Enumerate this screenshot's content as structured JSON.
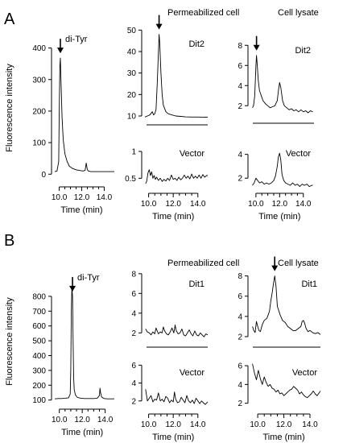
{
  "colors": {
    "trace": "#000000",
    "axis": "#000000",
    "background": "#ffffff"
  },
  "sections": [
    {
      "letter": "A",
      "col_headers": [
        "Permeabilized cell",
        "Cell lysate"
      ]
    },
    {
      "letter": "B",
      "col_headers": [
        "Permeabilized cell",
        "Cell lysate"
      ]
    }
  ],
  "chart_data": [
    {
      "id": "A-standard",
      "section": "A",
      "type": "line",
      "title": "",
      "xlabel": "Time (min)",
      "ylabel": "Fluorescence intensity",
      "panel_label": "",
      "peak_label": "di-Tyr",
      "peak_arrow_x": 10.1,
      "xlim": [
        9.6,
        14.9
      ],
      "ylim": [
        -30,
        450
      ],
      "xticks": [
        10.0,
        12.0,
        14.0
      ],
      "xtick_labels": [
        "10.0",
        "12.0",
        "14.0"
      ],
      "yticks": [
        0,
        100,
        200,
        300,
        400
      ],
      "ytick_labels": [
        "0",
        "100",
        "200",
        "300",
        "400"
      ],
      "show_x_axis": true,
      "show_xtick_labels": true,
      "show_y_axis": true,
      "series": [
        {
          "x": [
            9.6,
            9.8,
            9.95,
            10.0,
            10.05,
            10.1,
            10.15,
            10.25,
            10.35,
            10.5,
            10.7,
            10.9,
            11.2,
            11.5,
            11.8,
            12.1,
            12.3,
            12.4,
            12.5,
            12.6,
            12.8,
            13.2,
            13.6,
            14.0,
            14.4,
            14.9
          ],
          "y": [
            8,
            10,
            40,
            200,
            340,
            368,
            300,
            180,
            110,
            65,
            40,
            25,
            18,
            14,
            12,
            10,
            12,
            35,
            14,
            10,
            8,
            8,
            8,
            8,
            8,
            8
          ]
        }
      ]
    },
    {
      "id": "A-perm-dit2",
      "section": "A",
      "type": "line",
      "title": "",
      "xlabel": "",
      "ylabel": "",
      "panel_label": "Dit2",
      "peak_label": "",
      "peak_arrow_x": 10.85,
      "xlim": [
        9.7,
        14.8
      ],
      "ylim": [
        7,
        52
      ],
      "xticks": [],
      "xtick_labels": [],
      "yticks": [
        10,
        20,
        30,
        40,
        50
      ],
      "ytick_labels": [
        "10",
        "20",
        "30",
        "40",
        "50"
      ],
      "show_x_axis": true,
      "show_xtick_labels": false,
      "show_y_axis": true,
      "series": [
        {
          "x": [
            9.7,
            9.9,
            10.1,
            10.3,
            10.4,
            10.5,
            10.6,
            10.7,
            10.8,
            10.85,
            10.9,
            11.0,
            11.1,
            11.2,
            11.4,
            11.6,
            11.9,
            12.2,
            12.6,
            13.0,
            13.5,
            14.0,
            14.8
          ],
          "y": [
            9.5,
            10,
            10.5,
            12,
            10.5,
            11,
            13,
            25,
            40,
            48,
            44,
            30,
            20,
            15,
            12,
            11,
            10.5,
            10,
            9.8,
            9.6,
            9.5,
            9.5,
            9.4
          ]
        }
      ]
    },
    {
      "id": "A-perm-vector",
      "section": "A",
      "type": "line",
      "title": "",
      "xlabel": "Time (min)",
      "ylabel": "",
      "panel_label": "Vector",
      "peak_label": "",
      "peak_arrow_x": null,
      "xlim": [
        9.7,
        14.8
      ],
      "ylim": [
        0.28,
        1.3
      ],
      "xticks": [
        10.0,
        12.0,
        14.0
      ],
      "xtick_labels": [
        "10.0",
        "12.0",
        "14.0"
      ],
      "yticks": [
        0.5,
        1
      ],
      "ytick_labels": [
        "0.5",
        "1"
      ],
      "show_x_axis": false,
      "show_xtick_labels": true,
      "show_y_axis": true,
      "series": [
        {
          "x": [
            9.75,
            9.85,
            9.95,
            10.05,
            10.15,
            10.25,
            10.35,
            10.45,
            10.55,
            10.65,
            10.8,
            10.95,
            11.1,
            11.25,
            11.4,
            11.55,
            11.7,
            11.85,
            12.0,
            12.15,
            12.3,
            12.45,
            12.6,
            12.75,
            12.9,
            13.05,
            13.2,
            13.35,
            13.5,
            13.65,
            13.8,
            13.95,
            14.1,
            14.25,
            14.4,
            14.55,
            14.7,
            14.8
          ],
          "y": [
            0.4,
            0.45,
            0.6,
            0.66,
            0.55,
            0.62,
            0.5,
            0.55,
            0.48,
            0.52,
            0.46,
            0.5,
            0.44,
            0.48,
            0.45,
            0.5,
            0.46,
            0.56,
            0.48,
            0.5,
            0.46,
            0.52,
            0.47,
            0.5,
            0.56,
            0.5,
            0.54,
            0.49,
            0.58,
            0.5,
            0.54,
            0.5,
            0.56,
            0.5,
            0.57,
            0.52,
            0.55,
            0.55
          ]
        }
      ]
    },
    {
      "id": "A-lys-dit2",
      "section": "A",
      "type": "line",
      "title": "",
      "xlabel": "",
      "ylabel": "",
      "panel_label": "Dit2",
      "peak_label": "",
      "peak_arrow_x": 10.05,
      "xlim": [
        9.6,
        14.9
      ],
      "ylim": [
        0.5,
        9.3
      ],
      "xticks": [],
      "xtick_labels": [],
      "yticks": [
        2,
        4,
        6,
        8
      ],
      "ytick_labels": [
        "2",
        "4",
        "6",
        "8"
      ],
      "show_x_axis": true,
      "show_xtick_labels": false,
      "show_y_axis": true,
      "series": [
        {
          "x": [
            9.7,
            9.8,
            9.9,
            10.0,
            10.05,
            10.1,
            10.2,
            10.3,
            10.45,
            10.6,
            10.8,
            11.0,
            11.2,
            11.4,
            11.6,
            11.8,
            11.9,
            12.0,
            12.1,
            12.25,
            12.4,
            12.6,
            12.8,
            13.0,
            13.2,
            13.4,
            13.6,
            13.8,
            14.0,
            14.2,
            14.4,
            14.6,
            14.8
          ],
          "y": [
            1.8,
            2,
            3,
            6,
            7,
            6.2,
            4.5,
            3.5,
            3,
            2.5,
            2.2,
            2,
            1.8,
            1.9,
            2,
            2.5,
            3.5,
            4.3,
            3.8,
            2.5,
            2,
            1.8,
            1.6,
            1.7,
            1.5,
            1.6,
            1.4,
            1.6,
            1.4,
            1.5,
            1.3,
            1.5,
            1.4
          ]
        }
      ]
    },
    {
      "id": "A-lys-vector",
      "section": "A",
      "type": "line",
      "title": "",
      "xlabel": "Time (min)",
      "ylabel": "",
      "panel_label": "Vector",
      "peak_label": "",
      "peak_arrow_x": null,
      "xlim": [
        9.6,
        14.9
      ],
      "ylim": [
        1.0,
        5.6
      ],
      "xticks": [
        10.0,
        12.0,
        14.0
      ],
      "xtick_labels": [
        "10.0",
        "12.0",
        "14.0"
      ],
      "yticks": [
        2,
        4
      ],
      "ytick_labels": [
        "2",
        "4"
      ],
      "show_x_axis": false,
      "show_xtick_labels": true,
      "show_y_axis": true,
      "series": [
        {
          "x": [
            9.7,
            9.85,
            10.0,
            10.15,
            10.3,
            10.5,
            10.7,
            10.9,
            11.1,
            11.3,
            11.5,
            11.65,
            11.8,
            11.9,
            12.0,
            12.1,
            12.2,
            12.35,
            12.5,
            12.7,
            12.9,
            13.1,
            13.3,
            13.5,
            13.7,
            13.9,
            14.1,
            14.3,
            14.5,
            14.7,
            14.8
          ],
          "y": [
            1.4,
            1.6,
            2,
            1.8,
            1.6,
            1.7,
            1.5,
            1.6,
            1.5,
            1.6,
            1.8,
            2.2,
            3,
            3.8,
            4.1,
            3.5,
            2.3,
            1.8,
            1.6,
            1.5,
            1.4,
            1.6,
            1.4,
            1.5,
            1.3,
            1.5,
            1.4,
            1.5,
            1.3,
            1.4,
            1.4
          ]
        }
      ]
    },
    {
      "id": "B-standard",
      "section": "B",
      "type": "line",
      "title": "",
      "xlabel": "Time (min)",
      "ylabel": "Fluorescence intensity",
      "panel_label": "",
      "peak_label": "di-Tyr",
      "peak_arrow_x": 11.15,
      "xlim": [
        9.6,
        14.8
      ],
      "ylim": [
        60,
        930
      ],
      "xticks": [
        10.0,
        12.0,
        14.0
      ],
      "xtick_labels": [
        "10.0",
        "12.0",
        "14.0"
      ],
      "yticks": [
        100,
        200,
        300,
        400,
        500,
        600,
        700,
        800
      ],
      "ytick_labels": [
        "100",
        "200",
        "300",
        "400",
        "500",
        "600",
        "700",
        "800"
      ],
      "show_x_axis": true,
      "show_xtick_labels": true,
      "show_y_axis": true,
      "series": [
        {
          "x": [
            9.6,
            9.9,
            10.2,
            10.5,
            10.8,
            10.95,
            11.0,
            11.05,
            11.1,
            11.15,
            11.2,
            11.25,
            11.3,
            11.4,
            11.55,
            11.7,
            11.9,
            12.2,
            12.6,
            13.0,
            13.3,
            13.5,
            13.55,
            13.6,
            13.7,
            13.9,
            14.2,
            14.5,
            14.8
          ],
          "y": [
            108,
            110,
            110,
            112,
            115,
            140,
            300,
            700,
            860,
            800,
            500,
            250,
            170,
            135,
            120,
            115,
            112,
            110,
            110,
            110,
            112,
            130,
            180,
            150,
            120,
            110,
            108,
            108,
            108
          ]
        }
      ]
    },
    {
      "id": "B-perm-dit1",
      "section": "B",
      "type": "line",
      "title": "",
      "xlabel": "",
      "ylabel": "",
      "panel_label": "Dit1",
      "peak_label": "",
      "peak_arrow_x": null,
      "xlim": [
        9.7,
        14.8
      ],
      "ylim": [
        0.8,
        8.8
      ],
      "xticks": [],
      "xtick_labels": [],
      "yticks": [
        2,
        4,
        6,
        8
      ],
      "ytick_labels": [
        "2",
        "4",
        "6",
        "8"
      ],
      "show_x_axis": true,
      "show_xtick_labels": false,
      "show_y_axis": true,
      "series": [
        {
          "x": [
            9.75,
            9.9,
            10.05,
            10.2,
            10.35,
            10.5,
            10.6,
            10.7,
            10.8,
            10.95,
            11.1,
            11.2,
            11.3,
            11.45,
            11.6,
            11.75,
            11.9,
            12.05,
            12.15,
            12.25,
            12.4,
            12.55,
            12.7,
            12.85,
            13.0,
            13.15,
            13.3,
            13.45,
            13.6,
            13.75,
            13.9,
            14.05,
            14.2,
            14.35,
            14.5,
            14.65,
            14.8
          ],
          "y": [
            2.4,
            2.1,
            2,
            1.8,
            2.1,
            1.9,
            2.5,
            2.2,
            1.9,
            2.1,
            2,
            2.6,
            2.2,
            1.9,
            1.8,
            2.1,
            2.5,
            2.0,
            2.8,
            2.2,
            1.9,
            2.0,
            2.4,
            1.8,
            1.7,
            2.0,
            2.3,
            1.9,
            1.7,
            2.2,
            1.8,
            1.7,
            2.0,
            1.8,
            1.6,
            1.9,
            1.8
          ]
        }
      ]
    },
    {
      "id": "B-perm-vector",
      "section": "B",
      "type": "line",
      "title": "",
      "xlabel": "Time (min)",
      "ylabel": "",
      "panel_label": "Vector",
      "peak_label": "",
      "peak_arrow_x": null,
      "xlim": [
        9.7,
        14.8
      ],
      "ylim": [
        0.9,
        7.2
      ],
      "xticks": [
        10.0,
        12.0,
        14.0
      ],
      "xtick_labels": [
        "10.0",
        "12.0",
        "14.0"
      ],
      "yticks": [
        2,
        4,
        6
      ],
      "ytick_labels": [
        "2",
        "4",
        "6"
      ],
      "show_x_axis": false,
      "show_xtick_labels": true,
      "show_y_axis": true,
      "series": [
        {
          "x": [
            9.75,
            9.9,
            10.05,
            10.2,
            10.35,
            10.5,
            10.65,
            10.8,
            10.95,
            11.1,
            11.25,
            11.4,
            11.55,
            11.7,
            11.85,
            12.0,
            12.1,
            12.2,
            12.35,
            12.5,
            12.65,
            12.8,
            12.95,
            13.1,
            13.25,
            13.4,
            13.55,
            13.7,
            13.85,
            14.0,
            14.15,
            14.3,
            14.45,
            14.6,
            14.8
          ],
          "y": [
            3.3,
            2.0,
            2.3,
            2.6,
            1.9,
            2.2,
            2.1,
            2.9,
            2.0,
            2.2,
            1.9,
            2.5,
            2.3,
            1.8,
            2.1,
            1.9,
            3.0,
            2.2,
            1.8,
            1.9,
            2.4,
            2.1,
            1.8,
            2.6,
            2.0,
            1.8,
            2.1,
            1.7,
            2.3,
            2.0,
            1.7,
            2.0,
            1.8,
            1.6,
            1.9
          ]
        }
      ]
    },
    {
      "id": "B-lys-dit1",
      "section": "B",
      "type": "line",
      "title": "",
      "xlabel": "",
      "ylabel": "",
      "panel_label": "Dit1",
      "peak_label": "",
      "peak_arrow_x": 11.3,
      "xlim": [
        9.5,
        14.8
      ],
      "ylim": [
        1.2,
        9.0
      ],
      "xticks": [],
      "xtick_labels": [],
      "yticks": [
        2,
        4,
        6,
        8
      ],
      "ytick_labels": [
        "2",
        "4",
        "6",
        "8"
      ],
      "show_x_axis": true,
      "show_xtick_labels": false,
      "show_y_axis": true,
      "series": [
        {
          "x": [
            9.6,
            9.7,
            9.8,
            9.9,
            10.0,
            10.1,
            10.2,
            10.35,
            10.5,
            10.7,
            10.9,
            11.0,
            11.1,
            11.2,
            11.3,
            11.4,
            11.5,
            11.7,
            11.9,
            12.1,
            12.3,
            12.5,
            12.7,
            12.9,
            13.1,
            13.3,
            13.4,
            13.5,
            13.6,
            13.7,
            13.85,
            14.0,
            14.2,
            14.4,
            14.6,
            14.8
          ],
          "y": [
            3,
            2.6,
            2.4,
            3.5,
            3.0,
            2.6,
            2.5,
            3.2,
            3.6,
            3.8,
            4.5,
            5.5,
            6.3,
            7.2,
            8.0,
            7.0,
            5.0,
            4.2,
            3.6,
            3.4,
            3.0,
            2.8,
            2.6,
            2.6,
            2.8,
            3.0,
            3.5,
            3.6,
            3.3,
            2.8,
            2.5,
            2.6,
            2.4,
            2.3,
            2.4,
            2.2
          ]
        }
      ]
    },
    {
      "id": "B-lys-vector",
      "section": "B",
      "type": "line",
      "title": "",
      "xlabel": "Time (min)",
      "ylabel": "",
      "panel_label": "Vector",
      "peak_label": "",
      "peak_arrow_x": null,
      "xlim": [
        9.5,
        14.8
      ],
      "ylim": [
        1.2,
        7.2
      ],
      "xticks": [
        10.0,
        12.0,
        14.0
      ],
      "xtick_labels": [
        "10.0",
        "12.0",
        "14.0"
      ],
      "yticks": [
        2,
        4,
        6
      ],
      "ytick_labels": [
        "2",
        "4",
        "6"
      ],
      "show_x_axis": false,
      "show_xtick_labels": true,
      "show_y_axis": true,
      "series": [
        {
          "x": [
            9.6,
            9.75,
            9.9,
            10.05,
            10.2,
            10.35,
            10.5,
            10.65,
            10.8,
            10.95,
            11.1,
            11.25,
            11.4,
            11.55,
            11.7,
            11.85,
            12.0,
            12.15,
            12.3,
            12.45,
            12.6,
            12.75,
            12.9,
            13.05,
            13.2,
            13.35,
            13.5,
            13.65,
            13.8,
            13.95,
            14.1,
            14.25,
            14.4,
            14.55,
            14.7,
            14.8
          ],
          "y": [
            6.2,
            5.2,
            4.5,
            5.5,
            4.6,
            4.0,
            4.8,
            4.2,
            3.8,
            4.0,
            3.6,
            3.5,
            3.2,
            3.4,
            3.0,
            3.1,
            2.8,
            3.0,
            3.2,
            3.4,
            3.5,
            3.8,
            3.6,
            3.4,
            3.0,
            3.2,
            2.9,
            2.7,
            2.6,
            2.8,
            3.0,
            3.3,
            3.0,
            2.8,
            3.1,
            3.3
          ]
        }
      ]
    }
  ]
}
